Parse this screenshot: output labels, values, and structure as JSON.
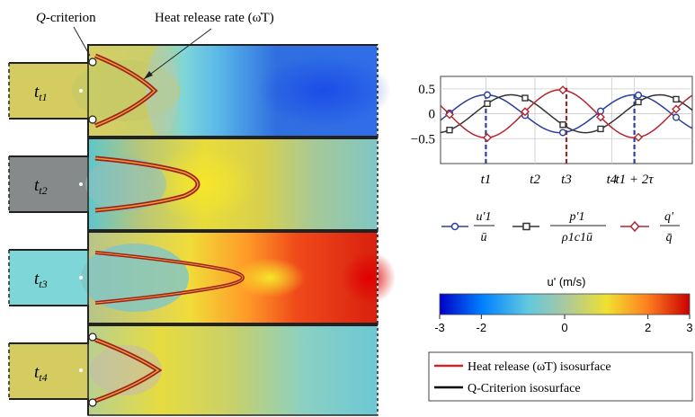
{
  "annotations": {
    "q_criterion": "Q-criterion",
    "heat_release_rate": "Heat release rate (ω̇T)"
  },
  "panels": [
    {
      "label": "t1",
      "phase": "t1"
    },
    {
      "label": "t2",
      "phase": "t2"
    },
    {
      "label": "t3",
      "phase": "t3"
    },
    {
      "label": "t4",
      "phase": "t4"
    }
  ],
  "chart_data": {
    "type": "line",
    "x_ticks": [
      "t1",
      "t2",
      "t3",
      "t4",
      "t1 + 2τ"
    ],
    "y_ticks": [
      "0.5",
      "0",
      "−0.5"
    ],
    "ylim": [
      -1.0,
      0.75
    ],
    "grid": true,
    "series": [
      {
        "name": "u'1 / ū",
        "color": "#2b3f9c",
        "marker": "circle",
        "values": [
          -0.35,
          0.35,
          -0.52,
          0.42,
          -0.12
        ],
        "marker_at": [
          0.0,
          0.18,
          0.5,
          0.75,
          0.97
        ]
      },
      {
        "name": "p'1 / (ρ1 c1 ū)",
        "color": "#333333",
        "marker": "square",
        "values": [
          -0.3,
          -0.4,
          0.52,
          -0.42,
          0.15
        ]
      },
      {
        "name": "q' / q̄",
        "color": "#b3262f",
        "marker": "diamond",
        "values": [
          0.2,
          -0.45,
          0.55,
          -0.42,
          0.35
        ]
      }
    ],
    "vlines": [
      {
        "at": "t1",
        "color": "#2b3f9c"
      },
      {
        "at": "t3",
        "color": "#8b2b2f"
      },
      {
        "at": "t1 + 2τ",
        "color": "#2b3f9c"
      }
    ]
  },
  "legend": {
    "u_num": "u'1",
    "u_den": "ū",
    "p_num": "p'1",
    "p_den": "ρ1c1ū",
    "q_num": "q'",
    "q_den": "q̄"
  },
  "colorbar": {
    "title": "u' (m/s)",
    "ticks": [
      "-3",
      "-2",
      "0",
      "2",
      "3"
    ],
    "range": [
      -3,
      3
    ],
    "colormap": [
      "#0000c8",
      "#0080ff",
      "#7fd6d6",
      "#c8c878",
      "#f0e030",
      "#ff8020",
      "#c80000"
    ]
  },
  "isolegend": {
    "heat_release": "Heat release (ω̇T) isosurface",
    "q_crit": "Q-Criterion isosurface",
    "heat_color": "#c0282f",
    "q_color": "#000000"
  }
}
